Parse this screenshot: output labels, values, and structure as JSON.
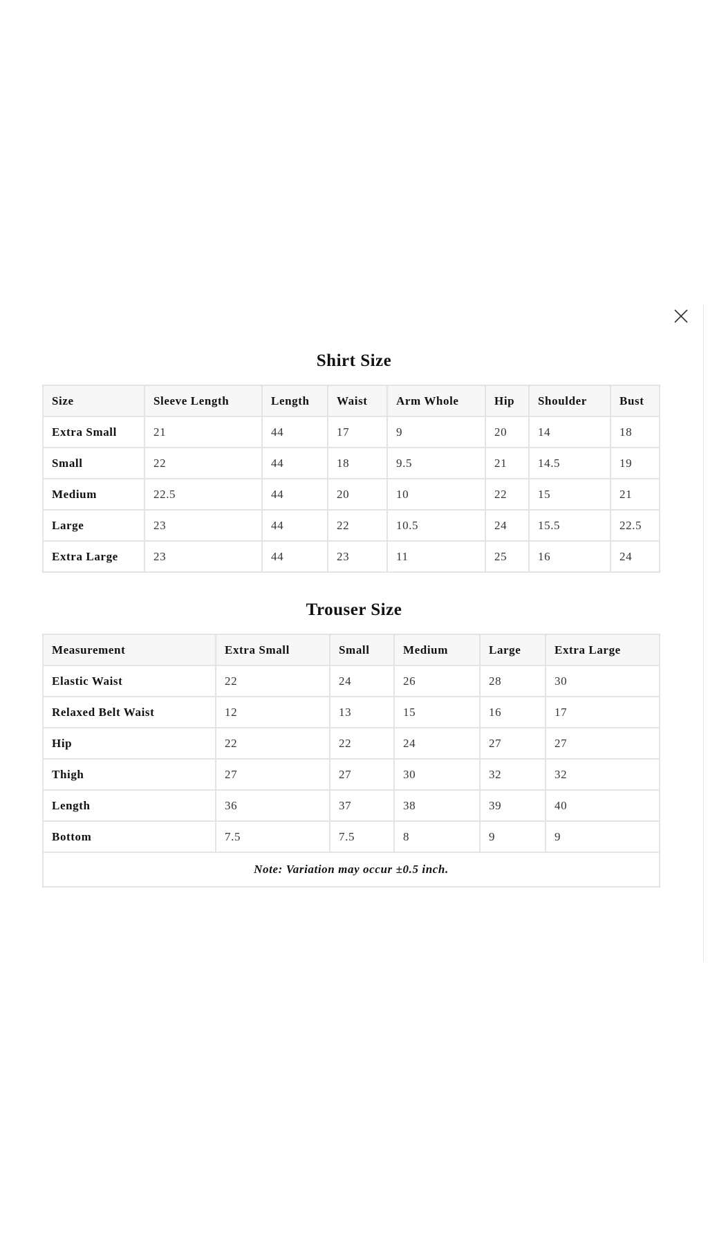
{
  "close_icon": "close-x-icon",
  "shirt": {
    "title": "Shirt Size",
    "headers": [
      "Size",
      "Sleeve Length",
      "Length",
      "Waist",
      "Arm Whole",
      "Hip",
      "Shoulder",
      "Bust"
    ],
    "rows": [
      [
        "Extra Small",
        "21",
        "44",
        "17",
        "9",
        "20",
        "14",
        "18"
      ],
      [
        "Small",
        "22",
        "44",
        "18",
        "9.5",
        "21",
        "14.5",
        "19"
      ],
      [
        "Medium",
        "22.5",
        "44",
        "20",
        "10",
        "22",
        "15",
        "21"
      ],
      [
        "Large",
        "23",
        "44",
        "22",
        "10.5",
        "24",
        "15.5",
        "22.5"
      ],
      [
        "Extra Large",
        "23",
        "44",
        "23",
        "11",
        "25",
        "16",
        "24"
      ]
    ]
  },
  "trouser": {
    "title": "Trouser Size",
    "headers": [
      "Measurement",
      "Extra Small",
      "Small",
      "Medium",
      "Large",
      "Extra Large"
    ],
    "rows": [
      [
        "Elastic Waist",
        "22",
        "24",
        "26",
        "28",
        "30"
      ],
      [
        "Relaxed Belt Waist",
        "12",
        "13",
        "15",
        "16",
        "17"
      ],
      [
        "Hip",
        "22",
        "22",
        "24",
        "27",
        "27"
      ],
      [
        "Thigh",
        "27",
        "27",
        "30",
        "32",
        "32"
      ],
      [
        "Length",
        "36",
        "37",
        "38",
        "39",
        "40"
      ],
      [
        "Bottom",
        "7.5",
        "7.5",
        "8",
        "9",
        "9"
      ]
    ],
    "note": "Note: Variation may occur ±0.5 inch."
  }
}
